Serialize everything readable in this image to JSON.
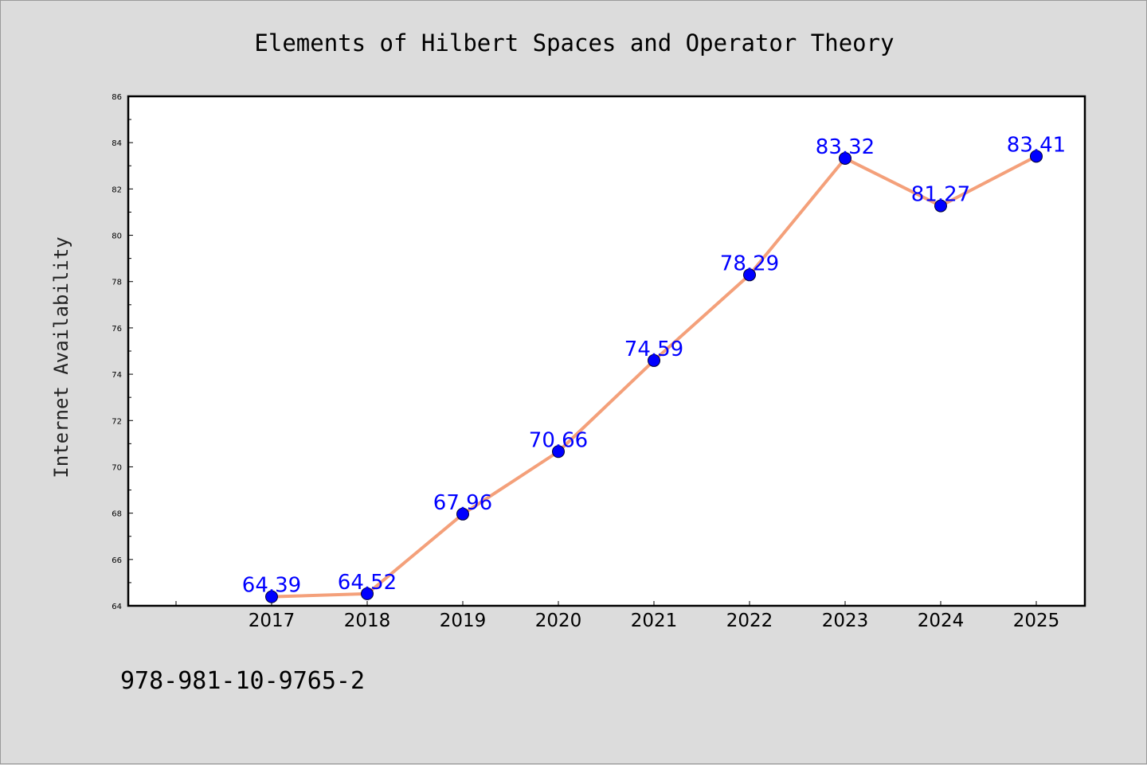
{
  "chart_data": {
    "type": "line",
    "title": "Elements of Hilbert Spaces and Operator Theory",
    "xlabel": "",
    "ylabel": "Internet Availability",
    "categories": [
      "2017",
      "2018",
      "2019",
      "2020",
      "2021",
      "2022",
      "2023",
      "2024",
      "2025"
    ],
    "series": [
      {
        "values": [
          64.39,
          64.52,
          67.96,
          70.66,
          74.59,
          78.29,
          83.32,
          81.27,
          83.41
        ],
        "labels": [
          "64.39",
          "64.52",
          "67.96",
          "70.66",
          "74.59",
          "78.29",
          "83.32",
          "81.27",
          "83.41"
        ]
      }
    ],
    "ylim": [
      64,
      86
    ],
    "yticks": [
      "64",
      "66",
      "68",
      "70",
      "72",
      "74",
      "76",
      "78",
      "80",
      "82",
      "84",
      "86"
    ],
    "grid": false,
    "legend": "none",
    "colors": {
      "line": "#f4a07a",
      "marker": "#0000ff",
      "label": "#0000ff",
      "background": "#dcdcdc",
      "plot_background": "#ffffff"
    }
  },
  "footer": {
    "isbn": "978-981-10-9765-2"
  }
}
